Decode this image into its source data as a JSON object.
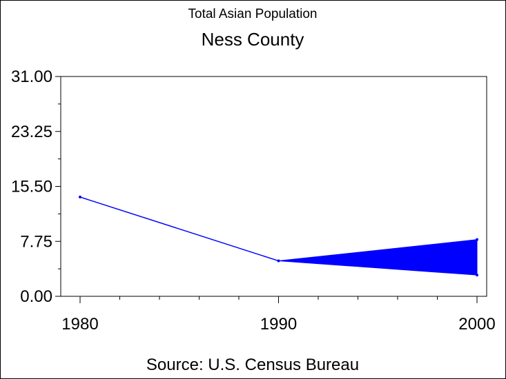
{
  "chart_data": {
    "type": "line",
    "subtitle": "Total Asian Population",
    "title": "Ness County",
    "footnote": "Source: U.S. Census Bureau",
    "x": [
      1980,
      1990,
      2000
    ],
    "x_tick_labels": [
      "1980",
      "1990",
      "2000"
    ],
    "y_tick_labels": [
      "31.00",
      "23.25",
      "15.50",
      "7.75",
      "0.00"
    ],
    "y_ticks": [
      31.0,
      23.25,
      15.5,
      7.75,
      0.0
    ],
    "ylim": [
      0,
      31
    ],
    "xlim": [
      1980,
      2000
    ],
    "series": [
      {
        "values": [
          14,
          5
        ],
        "x": [
          1980,
          1990
        ]
      }
    ],
    "band": {
      "x_start": 1990,
      "start_value": 5,
      "x_end": 2000,
      "upper": 8,
      "lower": 3
    },
    "grid": false,
    "color": "#0000ff"
  }
}
